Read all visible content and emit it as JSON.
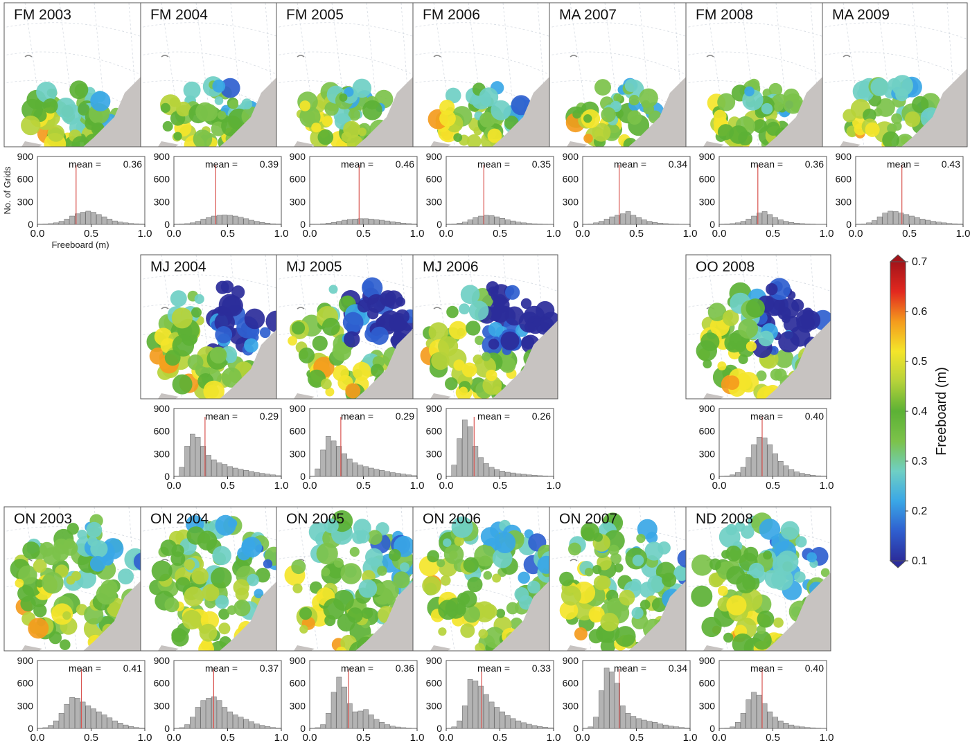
{
  "colors": {
    "land": "#c7c3c1",
    "frame": "#555555",
    "grid_line": "#d6dbe2",
    "hist_bar_fill": "#b3b3b3",
    "hist_bar_stroke": "#6a6a6a",
    "mean_line": "#d9534f",
    "colormap": [
      "#2b2c9a",
      "#2f5fcf",
      "#3aa7e6",
      "#6fcfc4",
      "#7cc24a",
      "#5cb135",
      "#b6d23a",
      "#f4e52a",
      "#f49b1d",
      "#e2281f",
      "#a3141a"
    ]
  },
  "chart_data": {
    "type": "figure-grid",
    "hist_axis": {
      "xlim": [
        0.0,
        1.0
      ],
      "ylim": [
        0,
        900
      ],
      "xticks": [
        "0.0",
        "0.5",
        "1.0"
      ],
      "yticks": [
        "0",
        "300",
        "600",
        "900"
      ],
      "ylabel": "No. of Grids",
      "xlabel": "Freeboard (m)"
    },
    "colorbar": {
      "label": "Freeboard (m)",
      "range": [
        0.1,
        0.7
      ],
      "ticks": [
        "0.1",
        "0.2",
        "0.3",
        "0.4",
        "0.5",
        "0.6",
        "0.7"
      ]
    },
    "panels": [
      {
        "title": "FM 2003",
        "mean_label": "mean =",
        "mean_value": "0.36",
        "mean": 0.36,
        "hist": [
          0,
          5,
          10,
          20,
          40,
          70,
          110,
          140,
          160,
          175,
          160,
          130,
          100,
          70,
          45,
          30,
          20,
          12,
          8,
          5
        ]
      },
      {
        "title": "FM 2004",
        "mean_label": "mean =",
        "mean_value": "0.39",
        "mean": 0.39,
        "hist": [
          0,
          5,
          10,
          20,
          40,
          70,
          90,
          110,
          120,
          125,
          120,
          110,
          95,
          75,
          55,
          40,
          25,
          15,
          8,
          5
        ]
      },
      {
        "title": "FM 2005",
        "mean_label": "mean =",
        "mean_value": "0.46",
        "mean": 0.46,
        "hist": [
          0,
          3,
          8,
          15,
          25,
          40,
          55,
          65,
          70,
          75,
          75,
          70,
          62,
          55,
          45,
          35,
          25,
          15,
          10,
          5
        ]
      },
      {
        "title": "FM 2006",
        "mean_label": "mean =",
        "mean_value": "0.35",
        "mean": 0.35,
        "hist": [
          0,
          5,
          15,
          30,
          60,
          90,
          110,
          120,
          115,
          100,
          80,
          60,
          45,
          30,
          20,
          12,
          8,
          5,
          3,
          2
        ]
      },
      {
        "title": "MA 2007",
        "mean_label": "mean =",
        "mean_value": "0.34",
        "mean": 0.34,
        "hist": [
          0,
          5,
          20,
          40,
          70,
          100,
          120,
          140,
          170,
          120,
          90,
          60,
          40,
          25,
          15,
          10,
          6,
          4,
          2,
          1
        ]
      },
      {
        "title": "FM 2008",
        "mean_label": "mean =",
        "mean_value": "0.36",
        "mean": 0.36,
        "hist": [
          0,
          5,
          10,
          20,
          40,
          70,
          110,
          150,
          170,
          130,
          90,
          60,
          40,
          25,
          15,
          10,
          6,
          4,
          2,
          1
        ]
      },
      {
        "title": "MA 2009",
        "mean_label": "mean =",
        "mean_value": "0.43",
        "mean": 0.43,
        "hist": [
          0,
          5,
          20,
          50,
          100,
          150,
          175,
          170,
          150,
          130,
          110,
          90,
          70,
          55,
          40,
          30,
          20,
          12,
          8,
          5
        ]
      },
      {
        "title": "MJ 2004",
        "mean_label": "mean =",
        "mean_value": "0.29",
        "mean": 0.29,
        "hist": [
          0,
          120,
          400,
          560,
          520,
          400,
          280,
          220,
          180,
          160,
          130,
          110,
          95,
          80,
          65,
          50,
          40,
          30,
          20,
          10
        ]
      },
      {
        "title": "MJ 2005",
        "mean_label": "mean =",
        "mean_value": "0.29",
        "mean": 0.29,
        "hist": [
          0,
          100,
          350,
          530,
          470,
          400,
          300,
          230,
          180,
          150,
          130,
          110,
          95,
          80,
          65,
          50,
          40,
          30,
          20,
          10
        ]
      },
      {
        "title": "MJ 2006",
        "mean_label": "mean =",
        "mean_value": "0.26",
        "mean": 0.26,
        "hist": [
          0,
          150,
          500,
          750,
          660,
          400,
          250,
          170,
          120,
          90,
          70,
          55,
          45,
          35,
          28,
          20,
          15,
          10,
          6,
          3
        ]
      },
      {
        "title": "OO 2008",
        "mean_label": "mean =",
        "mean_value": "0.40",
        "mean": 0.4,
        "hist": [
          0,
          5,
          20,
          50,
          120,
          250,
          420,
          520,
          510,
          420,
          300,
          200,
          140,
          90,
          60,
          40,
          25,
          15,
          8,
          4
        ]
      },
      {
        "title": "ON 2003",
        "mean_label": "mean =",
        "mean_value": "0.41",
        "mean": 0.41,
        "hist": [
          0,
          10,
          40,
          100,
          200,
          320,
          410,
          400,
          350,
          300,
          260,
          220,
          180,
          140,
          100,
          70,
          45,
          25,
          12,
          5
        ]
      },
      {
        "title": "ON 2004",
        "mean_label": "mean =",
        "mean_value": "0.37",
        "mean": 0.37,
        "hist": [
          0,
          10,
          50,
          150,
          280,
          370,
          400,
          420,
          370,
          280,
          220,
          180,
          150,
          120,
          90,
          60,
          40,
          25,
          12,
          5
        ]
      },
      {
        "title": "ON 2005",
        "mean_label": "mean =",
        "mean_value": "0.36",
        "mean": 0.36,
        "hist": [
          0,
          10,
          50,
          200,
          480,
          680,
          550,
          330,
          220,
          230,
          250,
          180,
          120,
          80,
          50,
          30,
          18,
          10,
          5,
          2
        ]
      },
      {
        "title": "ON 2006",
        "mean_label": "mean =",
        "mean_value": "0.33",
        "mean": 0.33,
        "hist": [
          0,
          20,
          100,
          300,
          650,
          630,
          560,
          450,
          350,
          280,
          220,
          170,
          130,
          100,
          75,
          55,
          38,
          25,
          15,
          8
        ]
      },
      {
        "title": "ON 2007",
        "mean_label": "mean =",
        "mean_value": "0.34",
        "mean": 0.34,
        "hist": [
          0,
          20,
          150,
          500,
          800,
          750,
          600,
          300,
          200,
          160,
          130,
          110,
          95,
          80,
          60,
          45,
          32,
          22,
          12,
          6
        ]
      },
      {
        "title": "ND 2008",
        "mean_label": "mean =",
        "mean_value": "0.40",
        "mean": 0.4,
        "hist": [
          0,
          5,
          20,
          80,
          200,
          380,
          480,
          440,
          330,
          220,
          150,
          100,
          70,
          45,
          30,
          20,
          12,
          8,
          4,
          2
        ]
      }
    ]
  }
}
